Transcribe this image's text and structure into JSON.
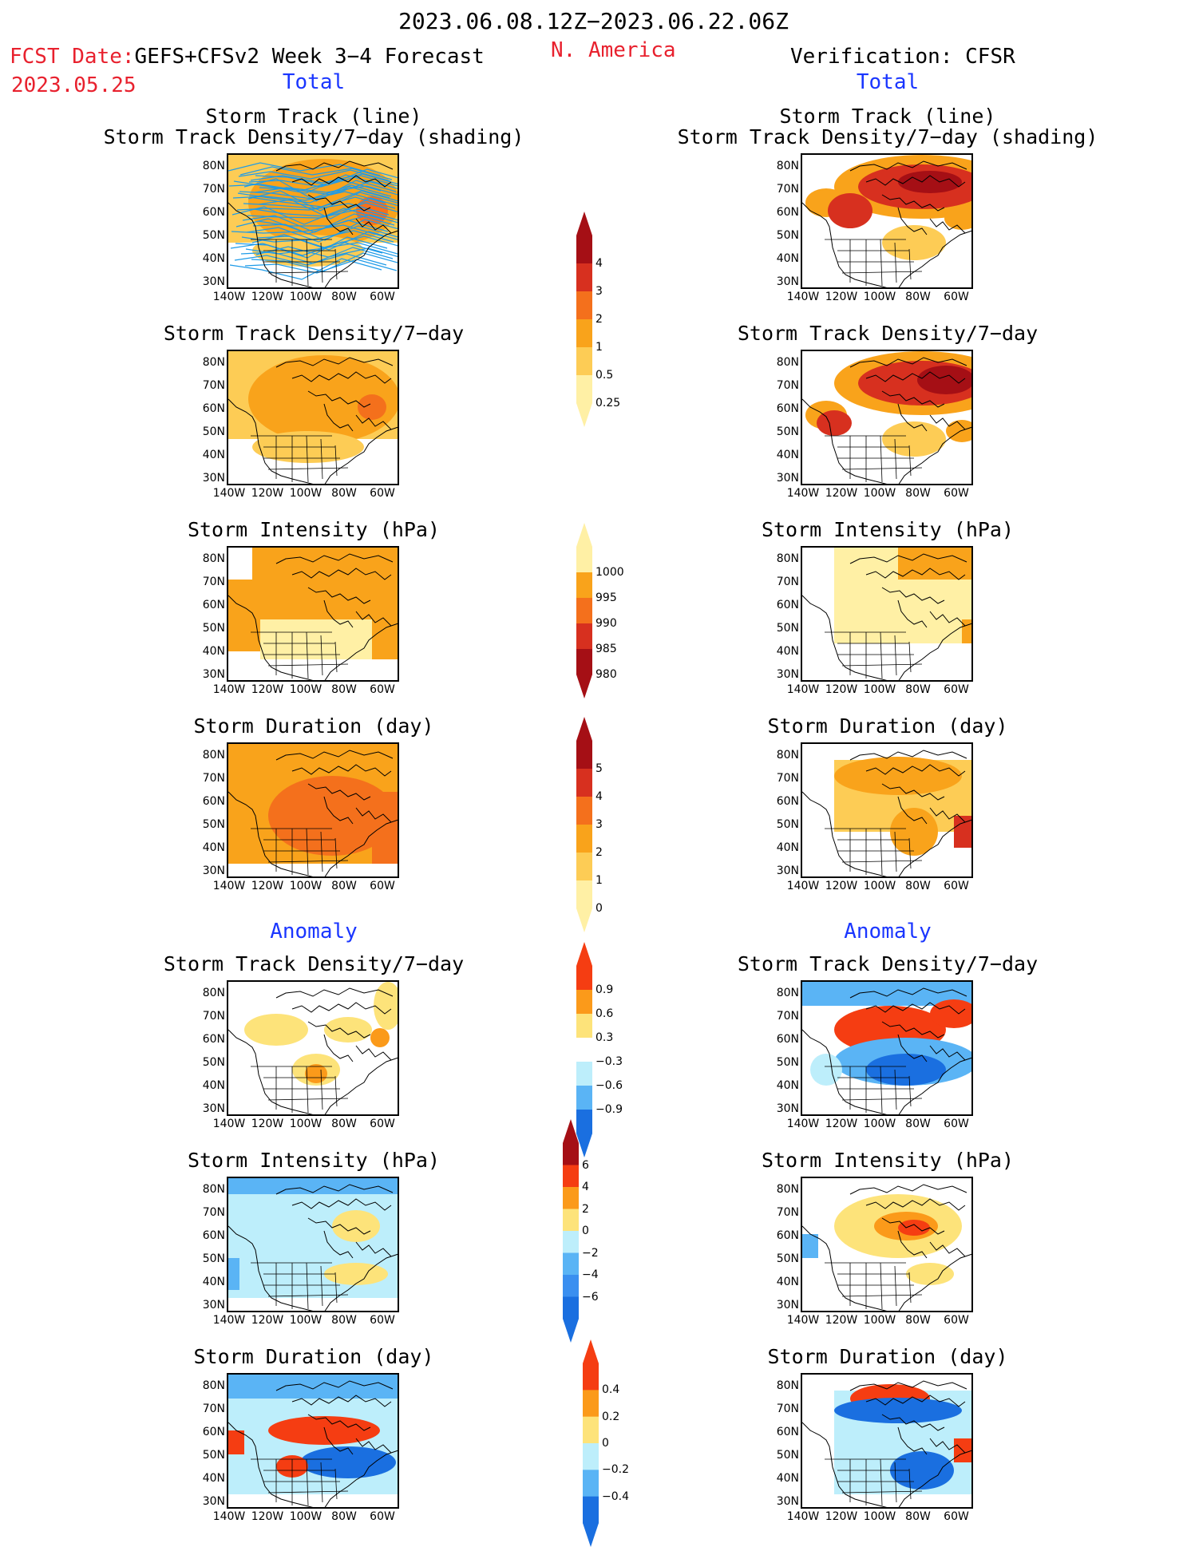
{
  "header": {
    "period": "2023.06.08.12Z−2023.06.22.06Z",
    "fcst_prefix": "FCST Date:",
    "fcst_model": "GEFS+CFSv2 Week 3−4 Forecast",
    "fcst_date": "2023.05.25",
    "region": "N. America",
    "verification": "Verification: CFSR"
  },
  "sections": {
    "total": "Total",
    "anomaly": "Anomaly"
  },
  "panel_titles": {
    "track_line": "Storm Track (line)",
    "track_shading": "Storm Track Density/7−day (shading)",
    "density": "Storm Track Density/7−day",
    "intensity": "Storm Intensity (hPa)",
    "duration": "Storm Duration (day)"
  },
  "map_axes": {
    "lat_labels": [
      "80N",
      "70N",
      "60N",
      "50N",
      "40N",
      "30N"
    ],
    "lon_labels": [
      "140W",
      "120W",
      "100W",
      "80W",
      "60W"
    ]
  },
  "colorbars": {
    "density_total": {
      "labels": [
        "4",
        "3",
        "2",
        "1",
        "0.5",
        "0.25"
      ],
      "colors": [
        "#a50f15",
        "#d7301f",
        "#f4701c",
        "#f9a31b",
        "#fdcc55",
        "#fff0a5"
      ]
    },
    "intensity_total": {
      "labels": [
        "1000",
        "995",
        "990",
        "985",
        "980"
      ],
      "colors": [
        "#fff0a5",
        "#f9a31b",
        "#f4701c",
        "#d7301f",
        "#a50f15"
      ]
    },
    "duration_total": {
      "labels": [
        "5",
        "4",
        "3",
        "2",
        "1",
        "0"
      ],
      "colors": [
        "#a50f15",
        "#d7301f",
        "#f4701c",
        "#f9a31b",
        "#fdcc55",
        "#fff0a5"
      ]
    },
    "density_anom": {
      "labels": [
        "0.9",
        "0.6",
        "0.3",
        "−0.3",
        "−0.6",
        "−0.9"
      ],
      "colors": [
        "#f53d12",
        "#fb9a1a",
        "#fde37a",
        "#ffffff",
        "#bdeefb",
        "#5ab4f5",
        "#1a6fe0"
      ]
    },
    "intensity_anom": {
      "labels": [
        "6",
        "4",
        "2",
        "0",
        "−2",
        "−4",
        "−6"
      ],
      "colors": [
        "#a50f15",
        "#f53d12",
        "#fb9a1a",
        "#fde37a",
        "#bdeefb",
        "#5ab4f5",
        "#3a8ff0",
        "#1a6fe0"
      ]
    },
    "duration_anom": {
      "labels": [
        "0.4",
        "0.2",
        "0",
        "−0.2",
        "−0.4"
      ],
      "colors": [
        "#f53d12",
        "#fb9a1a",
        "#fde37a",
        "#bdeefb",
        "#5ab4f5",
        "#1a6fe0"
      ]
    }
  },
  "colors": {
    "header_red": "#e8212e",
    "section_blue": "#1a36ff",
    "track_line": "#1e9be8"
  }
}
